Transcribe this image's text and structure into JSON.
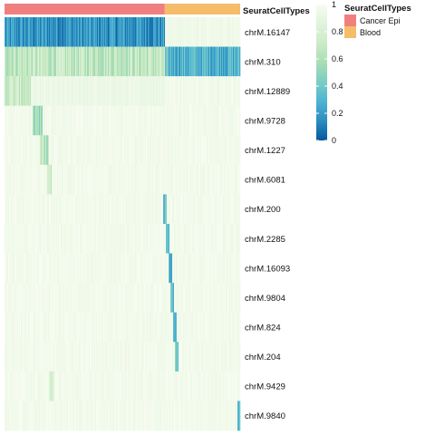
{
  "chart_data": {
    "type": "heatmap",
    "annotation_name": "SeuratCellTypes",
    "rows": [
      "chrM.16147",
      "chrM.310",
      "chrM.12889",
      "chrM.9728",
      "chrM.1227",
      "chrM.6081",
      "chrM.200",
      "chrM.2285",
      "chrM.16093",
      "chrM.9804",
      "chrM.824",
      "chrM.204",
      "chrM.9429",
      "chrM.9840"
    ],
    "groups": [
      {
        "name": "Cancer Epi",
        "fraction": 0.68,
        "color": "#F08080"
      },
      {
        "name": "Blood",
        "fraction": 0.32,
        "color": "#F5BC6A"
      }
    ],
    "row_patterns": [
      {
        "Cancer Epi": 0.18,
        "Blood": 0.95,
        "hotspot": null
      },
      {
        "Cancer Epi": 0.68,
        "Blood": 0.3,
        "hotspot": null
      },
      {
        "Cancer Epi": 0.93,
        "Blood": 0.97,
        "hotspot": {
          "start": 0.0,
          "end": 0.11,
          "value": 0.72
        }
      },
      {
        "Cancer Epi": 0.97,
        "Blood": 0.97,
        "hotspot": {
          "start": 0.12,
          "end": 0.16,
          "value": 0.55
        }
      },
      {
        "Cancer Epi": 0.97,
        "Blood": 0.97,
        "hotspot": {
          "start": 0.15,
          "end": 0.19,
          "value": 0.62
        }
      },
      {
        "Cancer Epi": 0.97,
        "Blood": 0.97,
        "hotspot": {
          "start": 0.18,
          "end": 0.2,
          "value": 0.7
        }
      },
      {
        "Cancer Epi": 0.97,
        "Blood": 0.97,
        "hotspot": {
          "start": 0.675,
          "end": 0.69,
          "value": 0.35
        }
      },
      {
        "Cancer Epi": 0.97,
        "Blood": 0.97,
        "hotspot": {
          "start": 0.685,
          "end": 0.7,
          "value": 0.35
        }
      },
      {
        "Cancer Epi": 0.97,
        "Blood": 0.97,
        "hotspot": {
          "start": 0.695,
          "end": 0.71,
          "value": 0.32
        }
      },
      {
        "Cancer Epi": 0.97,
        "Blood": 0.97,
        "hotspot": {
          "start": 0.705,
          "end": 0.72,
          "value": 0.35
        }
      },
      {
        "Cancer Epi": 0.97,
        "Blood": 0.97,
        "hotspot": {
          "start": 0.715,
          "end": 0.73,
          "value": 0.38
        }
      },
      {
        "Cancer Epi": 0.97,
        "Blood": 0.97,
        "hotspot": {
          "start": 0.725,
          "end": 0.74,
          "value": 0.42
        }
      },
      {
        "Cancer Epi": 0.97,
        "Blood": 0.97,
        "hotspot": {
          "start": 0.19,
          "end": 0.21,
          "value": 0.8
        }
      },
      {
        "Cancer Epi": 0.97,
        "Blood": 0.97,
        "hotspot": {
          "start": 0.99,
          "end": 1.0,
          "value": 0.3
        }
      }
    ],
    "colorbar": {
      "min": 0,
      "max": 1,
      "ticks": [
        "0",
        "0.2",
        "0.4",
        "0.6",
        "0.8",
        "1"
      ],
      "colors": [
        "#08589E",
        "#2B8CBE",
        "#4EB3D3",
        "#7BCCC4",
        "#A8DDB5",
        "#CCEBC5",
        "#E0F3DB",
        "#F7FCF0"
      ]
    },
    "legend": {
      "title": "SeuratCellTypes",
      "items": [
        {
          "label": "Cancer Epi",
          "color": "#F08080"
        },
        {
          "label": "Blood",
          "color": "#F5BC6A"
        }
      ]
    }
  }
}
